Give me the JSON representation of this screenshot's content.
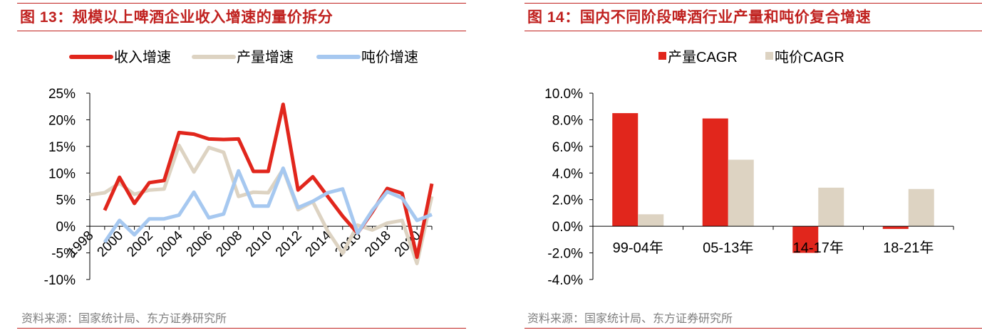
{
  "figures": [
    {
      "title": "图 13：规模以上啤酒企业收入增速的量价拆分",
      "source": "资料来源：国家统计局、东方证券研究所"
    },
    {
      "title": "图 14：国内不同阶段啤酒行业产量和吨价复合增速",
      "source": "资料来源：国家统计局、东方证券研究所"
    }
  ],
  "colors": {
    "red": "#e1261c",
    "beige": "#ddd3c2",
    "blue": "#a6c8f0",
    "title_red": "#c0211f"
  },
  "chart_data": [
    {
      "type": "line",
      "title": "",
      "x": [
        1998,
        1999,
        2000,
        2001,
        2002,
        2003,
        2004,
        2005,
        2006,
        2007,
        2008,
        2009,
        2010,
        2011,
        2012,
        2013,
        2014,
        2015,
        2016,
        2017,
        2018,
        2019,
        2020,
        2021
      ],
      "x_tick_labels": [
        "1998",
        "2000",
        "2002",
        "2004",
        "2006",
        "2008",
        "2010",
        "2012",
        "2014",
        "2016",
        "2018",
        "2020"
      ],
      "ylim": [
        -10,
        25
      ],
      "y_tick_labels": [
        "25%",
        "20%",
        "15%",
        "10%",
        "5%",
        "0%",
        "-5%",
        "-10%"
      ],
      "legend_position": "top",
      "series": [
        {
          "name": "收入增速",
          "color": "#e1261c",
          "values": [
            null,
            3.0,
            9.2,
            4.3,
            8.2,
            8.6,
            17.6,
            17.3,
            16.4,
            16.3,
            16.4,
            10.3,
            10.3,
            22.9,
            6.8,
            9.3,
            5.6,
            1.9,
            -1.3,
            2.7,
            7.1,
            6.2,
            -5.8,
            8.0
          ]
        },
        {
          "name": "产量增速",
          "color": "#ddd3c2",
          "values": [
            5.9,
            6.3,
            8.1,
            6.0,
            6.8,
            7.0,
            15.2,
            10.2,
            14.8,
            13.9,
            5.6,
            6.4,
            6.3,
            10.7,
            3.1,
            4.6,
            -0.9,
            -5.1,
            0.2,
            -0.7,
            0.6,
            1.1,
            -7.0,
            5.6
          ]
        },
        {
          "name": "吨价增速",
          "color": "#a6c8f0",
          "values": [
            null,
            -3.0,
            1.1,
            -1.6,
            1.4,
            1.4,
            2.1,
            6.4,
            1.6,
            2.3,
            10.4,
            3.8,
            3.8,
            10.9,
            3.5,
            4.7,
            6.3,
            7.0,
            -1.3,
            3.0,
            6.5,
            5.3,
            1.1,
            2.2
          ]
        }
      ]
    },
    {
      "type": "bar",
      "title": "",
      "categories": [
        "99-04年",
        "05-13年",
        "14-17年",
        "18-21年"
      ],
      "ylim": [
        -4,
        10
      ],
      "y_tick_labels": [
        "10.0%",
        "8.0%",
        "6.0%",
        "4.0%",
        "2.0%",
        "0.0%",
        "-2.0%",
        "-4.0%"
      ],
      "legend_position": "top",
      "series": [
        {
          "name": "产量CAGR",
          "color": "#e1261c",
          "values": [
            8.5,
            8.1,
            -2.0,
            -0.2
          ]
        },
        {
          "name": "吨价CAGR",
          "color": "#ddd3c2",
          "values": [
            0.9,
            5.0,
            2.9,
            2.8
          ]
        }
      ]
    }
  ]
}
